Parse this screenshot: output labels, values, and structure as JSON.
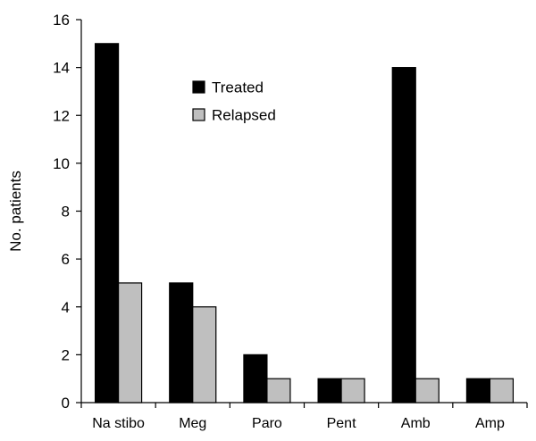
{
  "chart_data": {
    "type": "bar",
    "title": "",
    "xlabel": "",
    "ylabel": "No. patients",
    "ylim": [
      0,
      16
    ],
    "yticks": [
      0,
      2,
      4,
      6,
      8,
      10,
      12,
      14,
      16
    ],
    "categories": [
      "Na stibo",
      "Meg",
      "Paro",
      "Pent",
      "Amb",
      "Amp"
    ],
    "series": [
      {
        "name": "Treated",
        "values": [
          15,
          5,
          2,
          1,
          14,
          1
        ],
        "color": "#000000"
      },
      {
        "name": "Relapsed",
        "values": [
          5,
          4,
          1,
          1,
          1,
          1
        ],
        "color": "#bfbfbf"
      }
    ],
    "grid": false,
    "legend": "top-center"
  }
}
